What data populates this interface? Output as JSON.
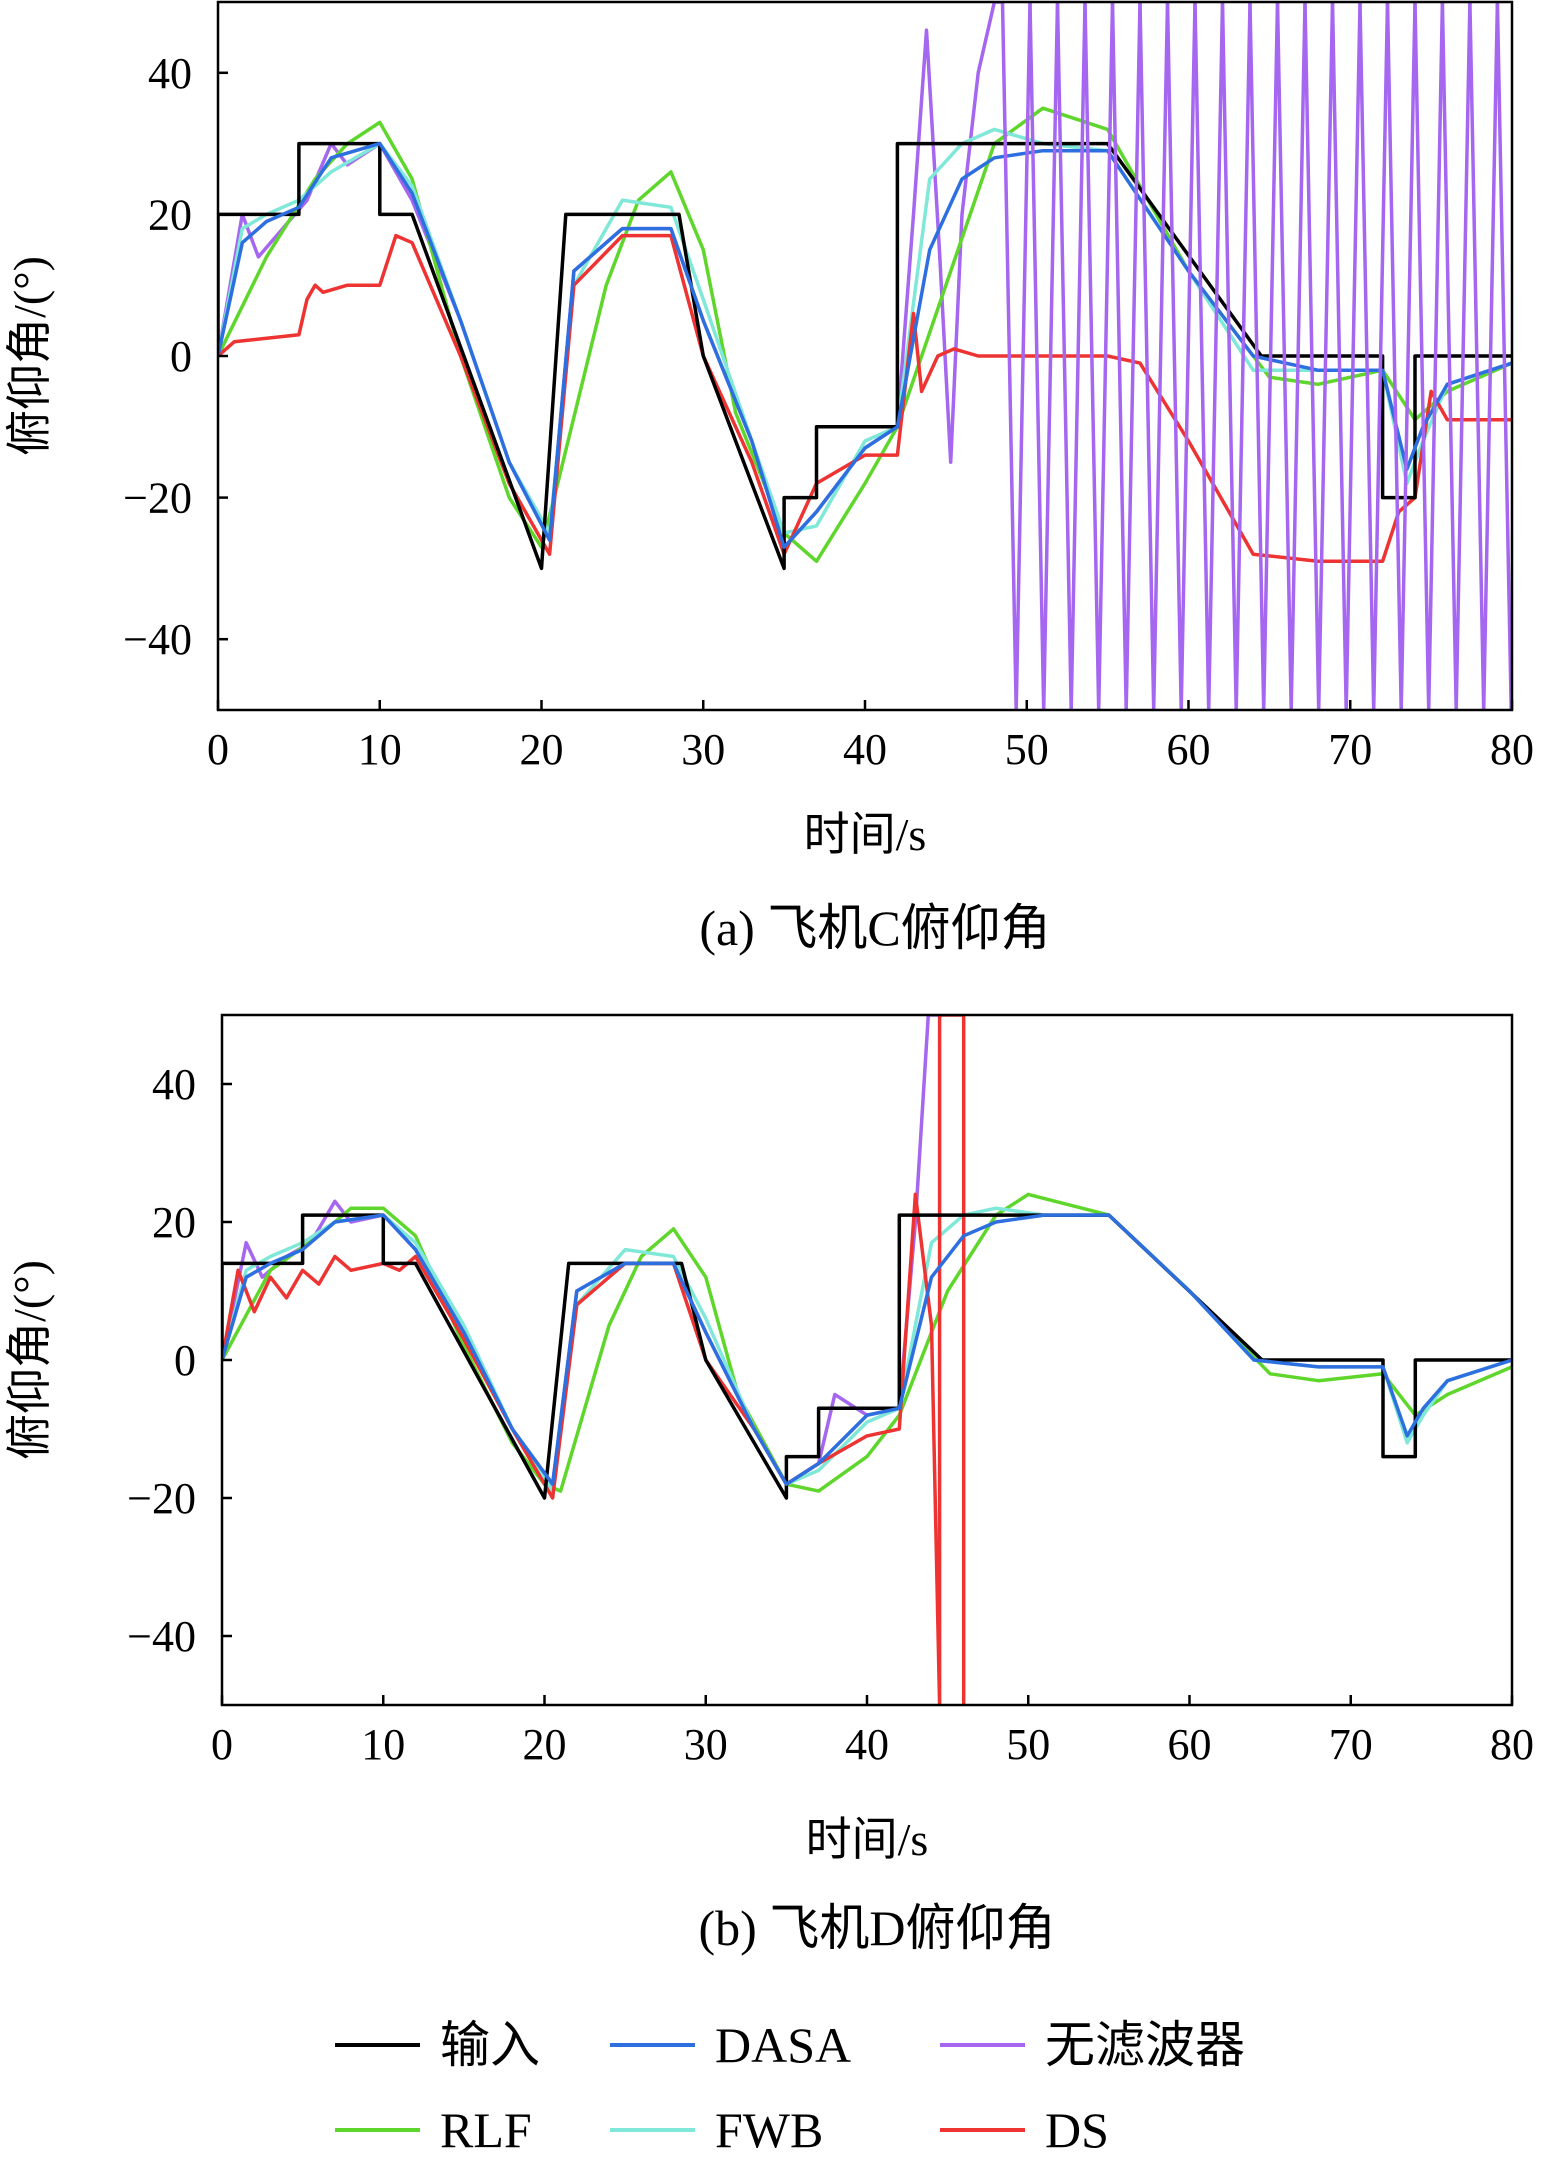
{
  "colors": {
    "input": "#000000",
    "DASA": "#2e6fe0",
    "no_filter": "#a566f0",
    "RLF": "#5fd62b",
    "FWB": "#7fe8d8",
    "DS": "#ee3333"
  },
  "legend": [
    {
      "key": "input",
      "label": "输入"
    },
    {
      "key": "DASA",
      "label": "DASA"
    },
    {
      "key": "no_filter",
      "label": "无滤波器"
    },
    {
      "key": "RLF",
      "label": "RLF"
    },
    {
      "key": "FWB",
      "label": "FWB"
    },
    {
      "key": "DS",
      "label": "DS"
    }
  ],
  "chart_data": [
    {
      "id": "a",
      "type": "line",
      "caption": "(a) 飞机C俯仰角",
      "xlabel": "时间/s",
      "ylabel": "俯仰角/(°)",
      "xlim": [
        0,
        80
      ],
      "ylim": [
        -50,
        50
      ],
      "xticks": [
        0,
        10,
        20,
        30,
        40,
        50,
        60,
        70,
        80
      ],
      "yticks": [
        -40,
        -20,
        0,
        20,
        40
      ],
      "series": [
        {
          "key": "input",
          "name": "输入",
          "x": [
            0,
            0,
            5,
            5,
            10,
            10,
            12,
            20,
            21.5,
            28.5,
            30,
            35,
            35,
            37,
            37,
            42,
            42,
            55,
            64.5,
            72,
            72,
            74,
            74,
            80
          ],
          "y": [
            0,
            20,
            20,
            30,
            30,
            20,
            20,
            -30,
            20,
            20,
            0,
            -30,
            -20,
            -20,
            -10,
            -10,
            30,
            30,
            0,
            0,
            -20,
            -20,
            0,
            0
          ]
        },
        {
          "key": "RLF",
          "name": "RLF",
          "x": [
            0,
            3,
            6,
            8,
            10,
            12,
            15,
            18,
            20,
            21,
            24,
            26,
            28,
            30,
            32,
            35,
            37,
            40,
            42,
            45,
            48,
            51,
            55,
            60,
            65,
            68,
            72,
            74,
            76,
            80
          ],
          "y": [
            0,
            14,
            25,
            30,
            33,
            25,
            0,
            -20,
            -27,
            -18,
            10,
            22,
            26,
            15,
            -8,
            -25,
            -29,
            -18,
            -10,
            10,
            30,
            35,
            32,
            12,
            -3,
            -4,
            -2,
            -9,
            -5,
            -1
          ]
        },
        {
          "key": "FWB",
          "name": "FWB",
          "x": [
            0,
            1.5,
            3,
            5,
            7,
            10,
            12,
            15,
            18,
            20.5,
            22,
            25,
            28,
            30,
            33,
            35,
            37,
            40,
            42,
            44,
            46,
            48,
            51,
            55,
            60,
            64,
            68,
            72,
            73.5,
            74.5,
            76,
            80
          ],
          "y": [
            0,
            18,
            20,
            22,
            26,
            30,
            24,
            5,
            -15,
            -25,
            10,
            22,
            21,
            8,
            -12,
            -25,
            -24,
            -12,
            -10,
            25,
            30,
            32,
            30,
            29,
            12,
            -2,
            -2,
            -2,
            -18,
            -12,
            -4,
            -1
          ]
        },
        {
          "key": "DASA",
          "name": "DASA",
          "x": [
            0,
            1.5,
            3,
            5,
            7,
            10,
            12,
            15,
            18,
            20.5,
            22,
            25,
            28,
            30,
            33,
            35,
            37,
            40,
            42,
            44,
            46,
            48,
            51,
            55,
            60,
            64,
            68,
            72,
            73.5,
            74.5,
            76,
            80
          ],
          "y": [
            0,
            16,
            19,
            21,
            28,
            30,
            23,
            5,
            -15,
            -26,
            12,
            18,
            18,
            5,
            -12,
            -27,
            -22,
            -13,
            -10,
            15,
            25,
            28,
            29,
            29,
            12,
            0,
            -2,
            -2,
            -16,
            -10,
            -4,
            -1
          ]
        },
        {
          "key": "no_filter",
          "name": "无滤波器",
          "x": [
            0,
            1.5,
            2.5,
            4,
            5.5,
            7,
            8,
            10,
            12,
            15,
            18,
            20.5,
            22,
            25,
            28,
            30,
            33,
            35,
            37,
            40,
            42,
            43,
            43.8,
            44.6,
            45.3,
            46,
            47,
            48,
            48.5
          ],
          "y": [
            0,
            20,
            14,
            18,
            22,
            30,
            27,
            30,
            22,
            5,
            -15,
            -26,
            12,
            18,
            18,
            5,
            -12,
            -27,
            -22,
            -13,
            -10,
            20,
            46,
            15,
            -15,
            20,
            40,
            50,
            50
          ]
        },
        {
          "key": "DS",
          "name": "DS",
          "x": [
            0,
            1,
            5,
            5.5,
            6,
            6.5,
            8,
            10,
            11,
            12,
            15,
            18,
            20.5,
            22,
            25,
            28,
            30,
            33,
            35,
            37,
            40,
            42,
            43,
            43.5,
            44.5,
            45.5,
            47,
            55,
            57,
            60,
            64,
            68,
            72,
            73,
            74,
            75,
            76,
            80
          ],
          "y": [
            0,
            2,
            3,
            8,
            10,
            9,
            10,
            10,
            17,
            16,
            0,
            -18,
            -28,
            10,
            17,
            17,
            0,
            -15,
            -28,
            -18,
            -14,
            -14,
            6,
            -5,
            0,
            1,
            0,
            0,
            -1,
            -12,
            -28,
            -29,
            -29,
            -22,
            -20,
            -5,
            -9,
            -9
          ]
        }
      ]
    },
    {
      "id": "b",
      "type": "line",
      "caption": "(b) 飞机D俯仰角",
      "xlabel": "时间/s",
      "ylabel": "俯仰角/(°)",
      "xlim": [
        0,
        80
      ],
      "ylim": [
        -50,
        50
      ],
      "xticks": [
        0,
        10,
        20,
        30,
        40,
        50,
        60,
        70,
        80
      ],
      "yticks": [
        -40,
        -20,
        0,
        20,
        40
      ],
      "series": [
        {
          "key": "input",
          "name": "输入",
          "x": [
            0,
            0,
            5,
            5,
            10,
            10,
            12,
            20,
            21.5,
            28.5,
            30,
            35,
            35,
            37,
            37,
            42,
            42,
            55,
            64.5,
            72,
            72,
            74,
            74,
            80
          ],
          "y": [
            0,
            14,
            14,
            21,
            21,
            14,
            14,
            -20,
            14,
            14,
            0,
            -20,
            -14,
            -14,
            -7,
            -7,
            21,
            21,
            0,
            0,
            -14,
            -14,
            0,
            0
          ]
        },
        {
          "key": "RLF",
          "name": "RLF",
          "x": [
            0,
            3,
            6,
            8,
            10,
            12,
            15,
            18,
            20,
            21,
            24,
            26,
            28,
            30,
            32,
            35,
            37,
            40,
            42,
            45,
            48,
            50,
            55,
            60,
            65,
            68,
            72,
            74,
            76,
            80
          ],
          "y": [
            0,
            13,
            18,
            22,
            22,
            18,
            2,
            -12,
            -18,
            -19,
            5,
            15,
            19,
            12,
            -5,
            -18,
            -19,
            -14,
            -8,
            10,
            21,
            24,
            21,
            10,
            -2,
            -3,
            -2,
            -8,
            -5,
            -1
          ]
        },
        {
          "key": "FWB",
          "name": "FWB",
          "x": [
            0,
            1.5,
            3,
            5,
            7,
            10,
            12,
            15,
            18,
            20.5,
            22,
            25,
            28,
            30,
            33,
            35,
            37,
            40,
            42,
            44,
            46,
            48,
            51,
            55,
            60,
            64,
            68,
            72,
            73.5,
            74.5,
            76,
            80
          ],
          "y": [
            0,
            13,
            15,
            17,
            20,
            21,
            17,
            5,
            -10,
            -19,
            8,
            16,
            15,
            6,
            -10,
            -18,
            -16,
            -9,
            -7,
            17,
            21,
            22,
            21,
            21,
            10,
            0,
            -1,
            -1,
            -12,
            -8,
            -3,
            0
          ]
        },
        {
          "key": "DASA",
          "name": "DASA",
          "x": [
            0,
            1.5,
            3,
            5,
            7,
            10,
            12,
            15,
            18,
            20.5,
            22,
            25,
            28,
            30,
            33,
            35,
            37,
            40,
            42,
            44,
            46,
            48,
            51,
            55,
            60,
            64,
            68,
            72,
            73.5,
            74.5,
            76,
            80
          ],
          "y": [
            0,
            12,
            14,
            16,
            20,
            21,
            16,
            4,
            -10,
            -18,
            10,
            14,
            14,
            4,
            -10,
            -18,
            -15,
            -8,
            -7,
            12,
            18,
            20,
            21,
            21,
            10,
            0,
            -1,
            -1,
            -11,
            -7,
            -3,
            0
          ]
        },
        {
          "key": "no_filter",
          "name": "无滤波器",
          "x": [
            0,
            1.5,
            2.5,
            4,
            5.5,
            7,
            8,
            10,
            12,
            15,
            18,
            20.5,
            22,
            25,
            28,
            30,
            33,
            35,
            37,
            38,
            40,
            42,
            43,
            43.8,
            44.6
          ],
          "y": [
            0,
            17,
            12,
            15,
            17,
            23,
            20,
            21,
            16,
            4,
            -10,
            -18,
            10,
            14,
            14,
            4,
            -10,
            -18,
            -15,
            -5,
            -8,
            -7,
            20,
            50,
            50
          ]
        },
        {
          "key": "DS",
          "name": "DS",
          "x": [
            0,
            1,
            2,
            3,
            4,
            5,
            6,
            7,
            8,
            10,
            11,
            12,
            15,
            18,
            20.5,
            22,
            25,
            28,
            30,
            33,
            35,
            37,
            40,
            42,
            43,
            44,
            44.5,
            44.5,
            46,
            46
          ],
          "y": [
            0,
            13,
            7,
            12,
            9,
            13,
            11,
            15,
            13,
            14,
            13,
            15,
            3,
            -10,
            -20,
            8,
            14,
            14,
            0,
            -10,
            -18,
            -15,
            -11,
            -10,
            24,
            5,
            -50,
            50,
            50,
            -50
          ]
        }
      ]
    }
  ]
}
